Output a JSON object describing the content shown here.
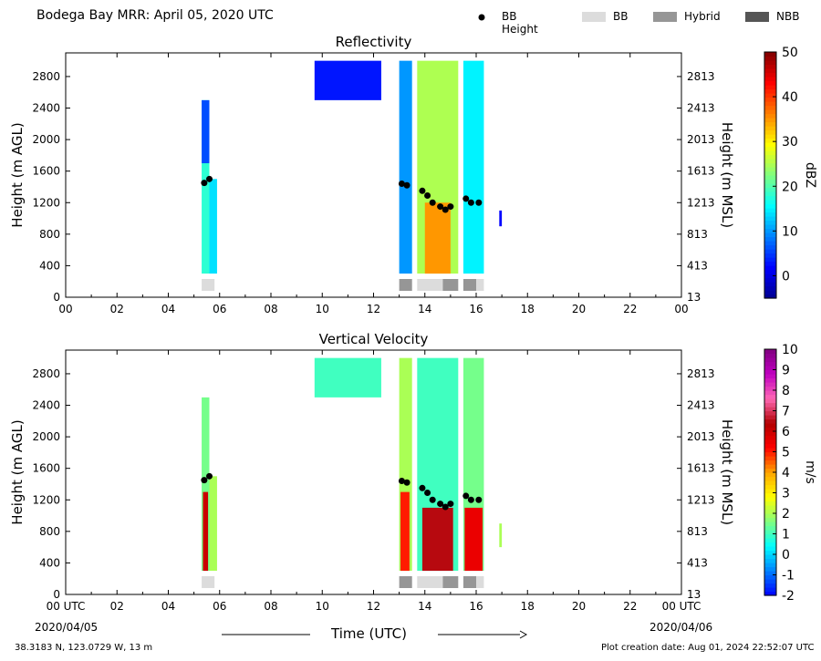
{
  "header": {
    "title": "Bodega Bay MRR:  April 05, 2020 UTC"
  },
  "legend": {
    "items": [
      {
        "label": "BB Height",
        "kind": "marker",
        "color": "#000000"
      },
      {
        "label": "BB",
        "kind": "box",
        "color": "#dcdcdc"
      },
      {
        "label": "Hybrid",
        "kind": "box",
        "color": "#969696"
      },
      {
        "label": "NBB",
        "kind": "box",
        "color": "#555555"
      }
    ]
  },
  "footer": {
    "coords": "38.3183 N, 123.0729 W, 13 m",
    "creation_date": "Plot creation date: Aug 01, 2024 22:52:07 UTC",
    "date_start": "2020/04/05",
    "date_end": "2020/04/06",
    "xaxis_label": "Time (UTC)"
  },
  "chart_data": [
    {
      "type": "heatmap",
      "title": "Reflectivity",
      "ylabel": "Height (m AGL)",
      "ylabel_right": "Height (m MSL)",
      "xlim": [
        0,
        24
      ],
      "ylim": [
        0,
        3100
      ],
      "yticks": [
        0,
        400,
        800,
        1200,
        1600,
        2000,
        2400,
        2800
      ],
      "yticks_right": [
        "13",
        "413",
        "813",
        "1213",
        "1613",
        "2013",
        "2413",
        "2813"
      ],
      "xticks": [
        "00",
        "02",
        "04",
        "06",
        "08",
        "10",
        "12",
        "14",
        "16",
        "18",
        "20",
        "22",
        "00"
      ],
      "colorbar": {
        "label": "dBZ",
        "min": -5,
        "max": 50,
        "ticks": [
          0,
          10,
          20,
          30,
          40,
          50
        ],
        "colors": [
          "#00008f",
          "#0000ff",
          "#0080ff",
          "#00ffff",
          "#80ff80",
          "#ffff00",
          "#ff8000",
          "#ff0000",
          "#800000"
        ]
      },
      "cells": [
        {
          "t0": 5.3,
          "t1": 5.6,
          "z0": 300,
          "z1": 2500,
          "v": 18
        },
        {
          "t0": 5.6,
          "t1": 5.9,
          "z0": 300,
          "z1": 1500,
          "v": 14
        },
        {
          "t0": 5.3,
          "t1": 5.6,
          "z0": 1700,
          "z1": 2500,
          "v": 6
        },
        {
          "t0": 9.7,
          "t1": 12.3,
          "z0": 2500,
          "z1": 3000,
          "v": 3
        },
        {
          "t0": 13.0,
          "t1": 13.5,
          "z0": 300,
          "z1": 3000,
          "v": 10
        },
        {
          "t0": 13.7,
          "t1": 15.3,
          "z0": 300,
          "z1": 3000,
          "v": 25
        },
        {
          "t0": 14.0,
          "t1": 15.0,
          "z0": 300,
          "z1": 1200,
          "v": 35
        },
        {
          "t0": 15.5,
          "t1": 16.3,
          "z0": 300,
          "z1": 3000,
          "v": 15
        },
        {
          "t0": 16.9,
          "t1": 17.0,
          "z0": 900,
          "z1": 1100,
          "v": 2
        }
      ],
      "bb_height": [
        {
          "t": 5.4,
          "h": 1450
        },
        {
          "t": 5.6,
          "h": 1500
        },
        {
          "t": 13.1,
          "h": 1440
        },
        {
          "t": 13.3,
          "h": 1420
        },
        {
          "t": 13.9,
          "h": 1350
        },
        {
          "t": 14.1,
          "h": 1290
        },
        {
          "t": 14.3,
          "h": 1200
        },
        {
          "t": 14.6,
          "h": 1150
        },
        {
          "t": 14.8,
          "h": 1110
        },
        {
          "t": 15.0,
          "h": 1150
        },
        {
          "t": 15.6,
          "h": 1250
        },
        {
          "t": 15.8,
          "h": 1200
        },
        {
          "t": 16.1,
          "h": 1200
        }
      ],
      "bb_type": [
        {
          "t0": 5.3,
          "t1": 5.8,
          "type": "BB"
        },
        {
          "t0": 13.0,
          "t1": 13.5,
          "type": "Hybrid"
        },
        {
          "t0": 13.7,
          "t1": 14.7,
          "type": "BB"
        },
        {
          "t0": 14.7,
          "t1": 15.3,
          "type": "Hybrid"
        },
        {
          "t0": 15.5,
          "t1": 16.0,
          "type": "Hybrid"
        },
        {
          "t0": 16.0,
          "t1": 16.3,
          "type": "BB"
        }
      ]
    },
    {
      "type": "heatmap",
      "title": "Vertical Velocity",
      "ylabel": "Height (m AGL)",
      "ylabel_right": "Height (m MSL)",
      "xlim": [
        0,
        24
      ],
      "ylim": [
        0,
        3100
      ],
      "yticks": [
        0,
        400,
        800,
        1200,
        1600,
        2000,
        2400,
        2800
      ],
      "yticks_right": [
        "13",
        "413",
        "813",
        "1213",
        "1613",
        "2013",
        "2413",
        "2813"
      ],
      "xticks": [
        "00 UTC",
        "02",
        "04",
        "06",
        "08",
        "10",
        "12",
        "14",
        "16",
        "18",
        "20",
        "22",
        "00 UTC"
      ],
      "colorbar": {
        "label": "m/s",
        "min": -2,
        "max": 10,
        "ticks": [
          -2,
          -1,
          0,
          1,
          2,
          3,
          4,
          5,
          6,
          7,
          8,
          9,
          10
        ],
        "colors": [
          "#0000ff",
          "#0080ff",
          "#00ffff",
          "#80ff80",
          "#ffff00",
          "#ffa500",
          "#ff0000",
          "#b00000",
          "#ff69b4",
          "#c000c0",
          "#800080"
        ]
      },
      "cells": [
        {
          "t0": 5.3,
          "t1": 5.6,
          "z0": 300,
          "z1": 2500,
          "v": 1.5
        },
        {
          "t0": 5.35,
          "t1": 5.55,
          "z0": 300,
          "z1": 1300,
          "v": 6
        },
        {
          "t0": 5.6,
          "t1": 5.9,
          "z0": 300,
          "z1": 1500,
          "v": 2
        },
        {
          "t0": 9.7,
          "t1": 12.3,
          "z0": 2500,
          "z1": 3000,
          "v": 1
        },
        {
          "t0": 13.0,
          "t1": 13.5,
          "z0": 300,
          "z1": 3000,
          "v": 2
        },
        {
          "t0": 13.05,
          "t1": 13.4,
          "z0": 300,
          "z1": 1300,
          "v": 5
        },
        {
          "t0": 13.7,
          "t1": 15.3,
          "z0": 300,
          "z1": 3000,
          "v": 1
        },
        {
          "t0": 13.9,
          "t1": 15.1,
          "z0": 300,
          "z1": 1100,
          "v": 6.5
        },
        {
          "t0": 15.5,
          "t1": 16.3,
          "z0": 300,
          "z1": 3000,
          "v": 1.5
        },
        {
          "t0": 15.55,
          "t1": 16.25,
          "z0": 300,
          "z1": 1100,
          "v": 5.5
        },
        {
          "t0": 16.9,
          "t1": 17.0,
          "z0": 600,
          "z1": 900,
          "v": 2
        }
      ],
      "bb_height": [
        {
          "t": 5.4,
          "h": 1450
        },
        {
          "t": 5.6,
          "h": 1500
        },
        {
          "t": 13.1,
          "h": 1440
        },
        {
          "t": 13.3,
          "h": 1420
        },
        {
          "t": 13.9,
          "h": 1350
        },
        {
          "t": 14.1,
          "h": 1290
        },
        {
          "t": 14.3,
          "h": 1200
        },
        {
          "t": 14.6,
          "h": 1150
        },
        {
          "t": 14.8,
          "h": 1110
        },
        {
          "t": 15.0,
          "h": 1150
        },
        {
          "t": 15.6,
          "h": 1250
        },
        {
          "t": 15.8,
          "h": 1200
        },
        {
          "t": 16.1,
          "h": 1200
        }
      ],
      "bb_type": [
        {
          "t0": 5.3,
          "t1": 5.8,
          "type": "BB"
        },
        {
          "t0": 13.0,
          "t1": 13.5,
          "type": "Hybrid"
        },
        {
          "t0": 13.7,
          "t1": 14.7,
          "type": "BB"
        },
        {
          "t0": 14.7,
          "t1": 15.3,
          "type": "Hybrid"
        },
        {
          "t0": 15.5,
          "t1": 16.0,
          "type": "Hybrid"
        },
        {
          "t0": 16.0,
          "t1": 16.3,
          "type": "BB"
        }
      ]
    }
  ]
}
